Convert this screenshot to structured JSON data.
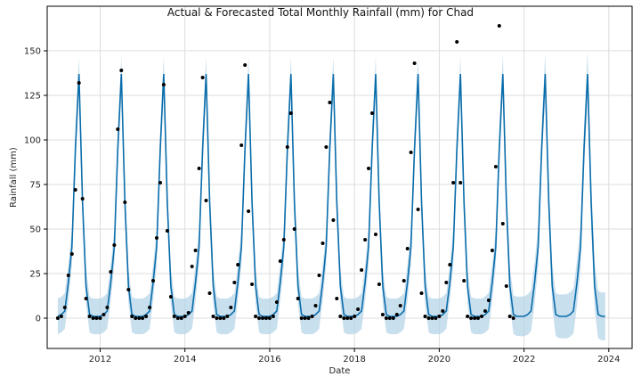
{
  "chart_data": {
    "type": "line",
    "title": "Actual & Forecasted Total Monthly Rainfall (mm) for Chad",
    "xlabel": "Date",
    "ylabel": "Rainfall (mm)",
    "xlim": [
      2010.75,
      2024.55
    ],
    "ylim": [
      -17,
      175
    ],
    "x_ticks": [
      2012,
      2014,
      2016,
      2018,
      2020,
      2022,
      2024
    ],
    "y_ticks": [
      0,
      25,
      50,
      75,
      100,
      125,
      150
    ],
    "grid": true,
    "colors": {
      "forecast_line": "#0a6dab",
      "interval_band": "#b6d4e8",
      "actual_points": "#000000"
    },
    "forecast_month_profile": [
      1,
      2,
      4,
      20,
      40,
      95,
      137,
      65,
      18,
      2,
      1,
      1
    ],
    "uncertainty_halfwidth_mm": 10,
    "forecast_range": [
      "2011-01",
      "2023-12"
    ],
    "actual_observations": [
      {
        "year": 2011,
        "values": [
          0,
          1,
          6,
          24,
          36,
          72,
          132,
          67,
          11,
          1,
          0,
          0
        ]
      },
      {
        "year": 2012,
        "values": [
          0,
          2,
          6,
          26,
          41,
          106,
          139,
          65,
          16,
          1,
          0,
          0
        ]
      },
      {
        "year": 2013,
        "values": [
          0,
          1,
          6,
          21,
          45,
          76,
          131,
          49,
          12,
          1,
          0,
          0
        ]
      },
      {
        "year": 2014,
        "values": [
          1,
          3,
          29,
          38,
          84,
          135,
          66,
          14,
          1,
          0,
          0,
          0
        ]
      },
      {
        "year": 2015,
        "values": [
          1,
          6,
          20,
          30,
          97,
          142,
          60,
          19,
          1,
          0,
          0,
          0
        ]
      },
      {
        "year": 2016,
        "values": [
          0,
          1,
          9,
          32,
          44,
          96,
          115,
          50,
          11,
          0,
          0,
          0
        ]
      },
      {
        "year": 2017,
        "values": [
          1,
          7,
          24,
          42,
          96,
          121,
          55,
          11,
          1,
          0,
          0,
          0
        ]
      },
      {
        "year": 2018,
        "values": [
          1,
          5,
          27,
          44,
          84,
          115,
          47,
          19,
          2,
          0,
          0,
          0
        ]
      },
      {
        "year": 2019,
        "values": [
          2,
          7,
          21,
          39,
          93,
          143,
          61,
          14,
          1,
          0,
          0,
          0
        ]
      },
      {
        "year": 2020,
        "values": [
          1,
          4,
          20,
          30,
          76,
          155,
          76,
          21,
          1,
          0,
          0,
          0
        ]
      },
      {
        "year": 2021,
        "values": [
          1,
          4,
          10,
          38,
          85,
          164,
          53,
          18,
          1,
          0
        ]
      }
    ]
  }
}
